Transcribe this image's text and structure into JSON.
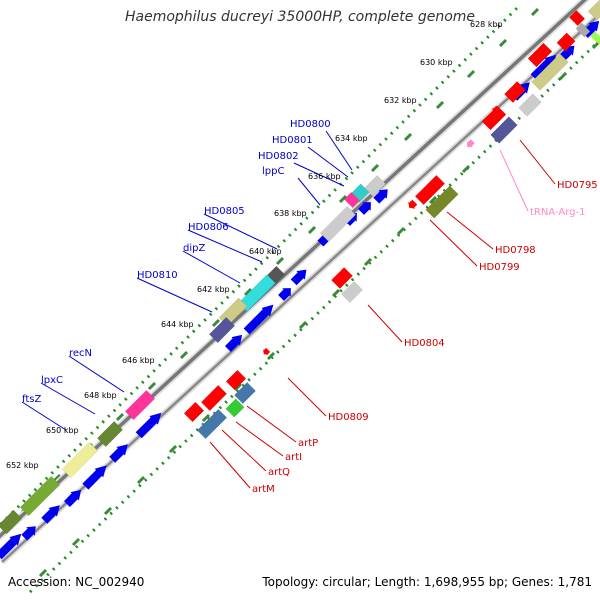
{
  "title": "Haemophilus ducreyi 35000HP, complete genome",
  "footer": {
    "accession": "Accession: NC_002940",
    "stats": "Topology: circular; Length: 1,698,955 bp; Genes: 1,781"
  },
  "colors": {
    "forward_label": "#0000cc",
    "reverse_label": "#cc0000",
    "trna_label": "#ff88cc",
    "backbone": "#777777",
    "tick_dots": "#228b22",
    "cds_blue": "#0000ee"
  },
  "ticks": [
    {
      "label": "628 kbp"
    },
    {
      "label": "630 kbp"
    },
    {
      "label": "632 kbp"
    },
    {
      "label": "634 kbp"
    },
    {
      "label": "636 kbp"
    },
    {
      "label": "638 kbp"
    },
    {
      "label": "640 kbp"
    },
    {
      "label": "642 kbp"
    },
    {
      "label": "644 kbp"
    },
    {
      "label": "646 kbp"
    },
    {
      "label": "648 kbp"
    },
    {
      "label": "650 kbp"
    },
    {
      "label": "652 kbp"
    }
  ],
  "forward_labels": [
    "HD0800",
    "HD0801",
    "HD0802",
    "lppC",
    "HD0805",
    "HD0806",
    "dipZ",
    "HD0810",
    "recN",
    "lpxC",
    "ftsZ"
  ],
  "reverse_labels": [
    "HD0795",
    "tRNA-Arg-1",
    "HD0798",
    "HD0799",
    "HD0804",
    "HD0809",
    "artP",
    "artI",
    "artQ",
    "artM"
  ]
}
